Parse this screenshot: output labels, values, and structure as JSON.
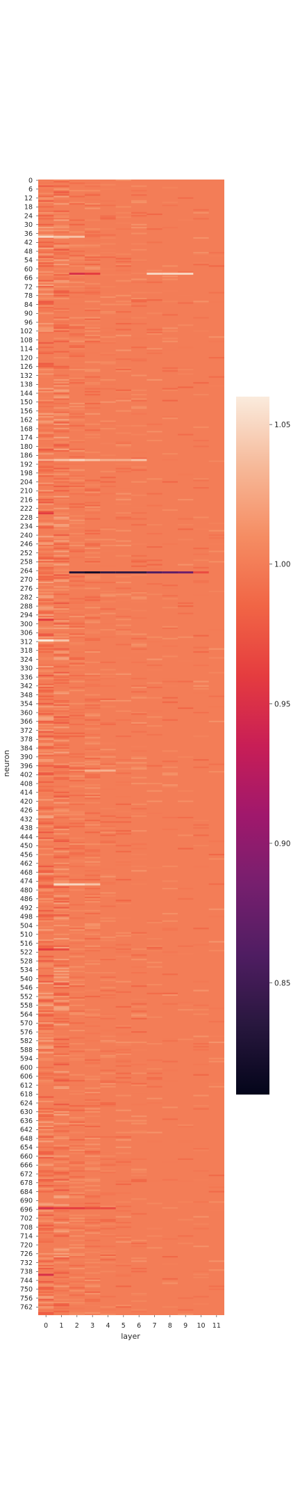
{
  "chart_data": {
    "type": "heatmap",
    "title": "",
    "xlabel": "layer",
    "ylabel": "neuron",
    "x_categories": [
      "0",
      "1",
      "2",
      "3",
      "4",
      "5",
      "6",
      "7",
      "8",
      "9",
      "10",
      "11"
    ],
    "y_tick_labels": [
      "0",
      "6",
      "12",
      "18",
      "24",
      "30",
      "36",
      "42",
      "48",
      "54",
      "60",
      "66",
      "72",
      "78",
      "84",
      "90",
      "96",
      "102",
      "108",
      "114",
      "120",
      "126",
      "132",
      "138",
      "144",
      "150",
      "156",
      "162",
      "168",
      "174",
      "180",
      "186",
      "192",
      "198",
      "204",
      "210",
      "216",
      "222",
      "228",
      "234",
      "240",
      "246",
      "252",
      "258",
      "264",
      "270",
      "276",
      "282",
      "288",
      "294",
      "300",
      "306",
      "312",
      "318",
      "324",
      "330",
      "336",
      "342",
      "348",
      "354",
      "360",
      "366",
      "372",
      "378",
      "384",
      "390",
      "396",
      "402",
      "408",
      "414",
      "420",
      "426",
      "432",
      "438",
      "444",
      "450",
      "456",
      "462",
      "468",
      "474",
      "480",
      "486",
      "492",
      "498",
      "504",
      "510",
      "516",
      "522",
      "528",
      "534",
      "540",
      "546",
      "552",
      "558",
      "564",
      "570",
      "576",
      "582",
      "588",
      "594",
      "600",
      "606",
      "612",
      "618",
      "624",
      "630",
      "636",
      "642",
      "648",
      "654",
      "660",
      "666",
      "672",
      "678",
      "684",
      "690",
      "696",
      "702",
      "708",
      "714",
      "720",
      "726",
      "732",
      "738",
      "744",
      "750",
      "756",
      "762"
    ],
    "n_rows": 768,
    "baseline_value": 1.0,
    "colorbar": {
      "colormap": "rocket",
      "vmin": 0.81,
      "vmax": 1.06,
      "ticks": [
        "0.85",
        "0.90",
        "0.95",
        "1.00",
        "1.05"
      ]
    },
    "notable_cells": [
      {
        "neuron": 265,
        "layers": [
          2,
          3,
          4,
          5,
          6,
          7,
          8,
          9
        ],
        "values": [
          0.83,
          0.82,
          0.84,
          0.84,
          0.84,
          0.86,
          0.87,
          0.88
        ]
      },
      {
        "neuron": 265,
        "layers": [
          10
        ],
        "values": [
          0.97
        ]
      },
      {
        "neuron": 63,
        "layers": [
          7,
          8,
          9
        ],
        "values": [
          1.05,
          1.05,
          1.05
        ]
      },
      {
        "neuron": 63,
        "layers": [
          2,
          3
        ],
        "values": [
          0.95,
          0.96
        ]
      },
      {
        "neuron": 38,
        "layers": [
          0,
          1,
          2
        ],
        "values": [
          1.05,
          1.04,
          1.04
        ]
      },
      {
        "neuron": 189,
        "layers": [
          0,
          1,
          2,
          3,
          4,
          5,
          6
        ],
        "values": [
          1.03,
          1.04,
          1.05,
          1.04,
          1.03,
          1.03,
          1.04
        ]
      },
      {
        "neuron": 311,
        "layers": [
          0,
          1
        ],
        "values": [
          1.06,
          1.04
        ]
      },
      {
        "neuron": 476,
        "layers": [
          1,
          2,
          3
        ],
        "values": [
          1.05,
          1.05,
          1.04
        ]
      },
      {
        "neuron": 695,
        "layers": [
          0,
          1,
          2,
          3,
          4
        ],
        "values": [
          0.95,
          0.96,
          0.96,
          0.97,
          0.97
        ]
      },
      {
        "neuron": 740,
        "layers": [
          0
        ],
        "values": [
          0.95
        ]
      },
      {
        "neuron": 520,
        "layers": [
          0,
          1
        ],
        "values": [
          0.96,
          0.97
        ]
      },
      {
        "neuron": 225,
        "layers": [
          0
        ],
        "values": [
          0.96
        ]
      },
      {
        "neuron": 297,
        "layers": [
          0
        ],
        "values": [
          0.96
        ]
      },
      {
        "neuron": 399,
        "layers": [
          3,
          4
        ],
        "values": [
          1.03,
          1.03
        ]
      }
    ]
  }
}
